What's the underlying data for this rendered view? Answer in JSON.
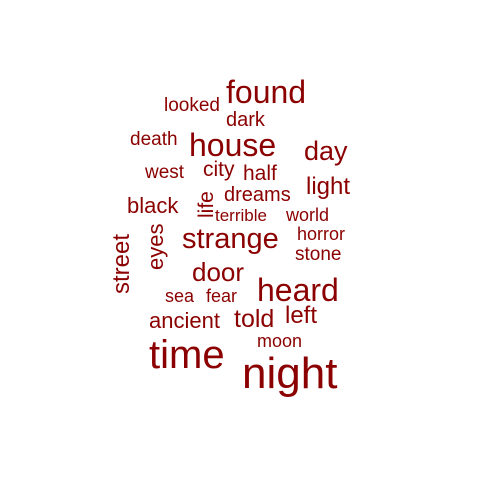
{
  "cloud": {
    "color": "#8b0000",
    "words": {
      "found": "found",
      "looked": "looked",
      "dark": "dark",
      "death": "death",
      "house": "house",
      "day": "day",
      "west": "west",
      "city": "city",
      "half": "half",
      "light": "light",
      "dreams": "dreams",
      "life": "life",
      "black": "black",
      "terrible": "terrible",
      "world": "world",
      "horror": "horror",
      "strange": "strange",
      "street": "street",
      "eyes": "eyes",
      "stone": "stone",
      "door": "door",
      "heard": "heard",
      "sea": "sea",
      "fear": "fear",
      "ancient": "ancient",
      "told": "told",
      "left": "left",
      "moon": "moon",
      "time": "time",
      "night": "night"
    }
  }
}
